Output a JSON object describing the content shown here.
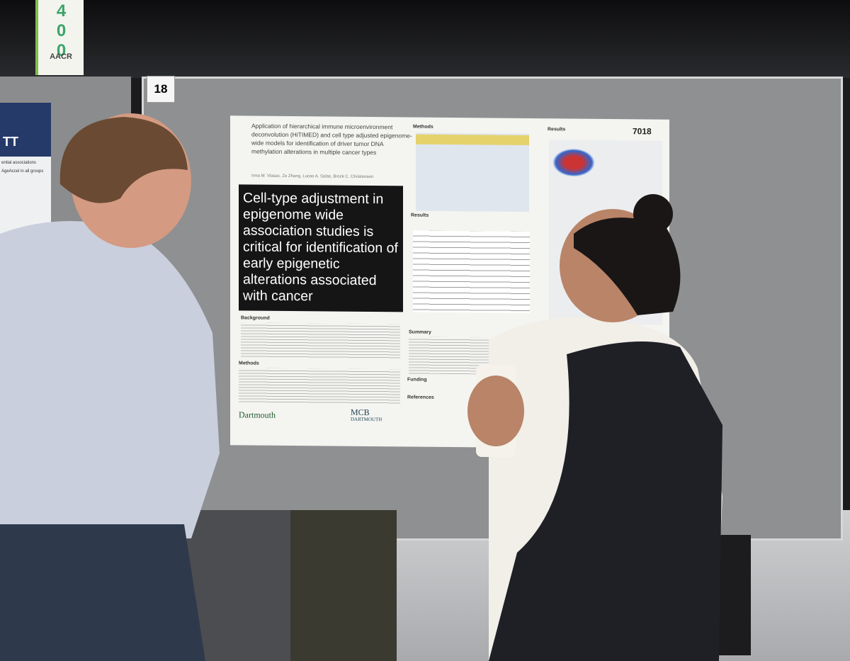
{
  "banner": {
    "number": "400",
    "logo": "AACR"
  },
  "board_number": "18",
  "left_poster": {
    "logo": "TT",
    "lines": [
      "ential associations",
      "AgeAccel in all groups"
    ]
  },
  "poster": {
    "id": "7018",
    "title": "Application of hierarchical immune microenvironment deconvolution (HiTIMED) and cell type adjusted epigenome-wide models for identification of driver tumor DNA methylation alterations in multiple cancer types",
    "authors": "Irma M. Vlasac, Ze Zhang, Lucas A. Salas, Brock C. Christensen",
    "headline": "Cell-type adjustment in epigenome wide association studies is critical for identification of early epigenetic alterations associated with cancer",
    "sections": [
      "Methods",
      "Results",
      "Results",
      "Summary",
      "Funding",
      "References",
      "Background",
      "Methods"
    ],
    "logos": [
      "Dartmouth",
      "MCB",
      "DARTMOUTH"
    ]
  }
}
